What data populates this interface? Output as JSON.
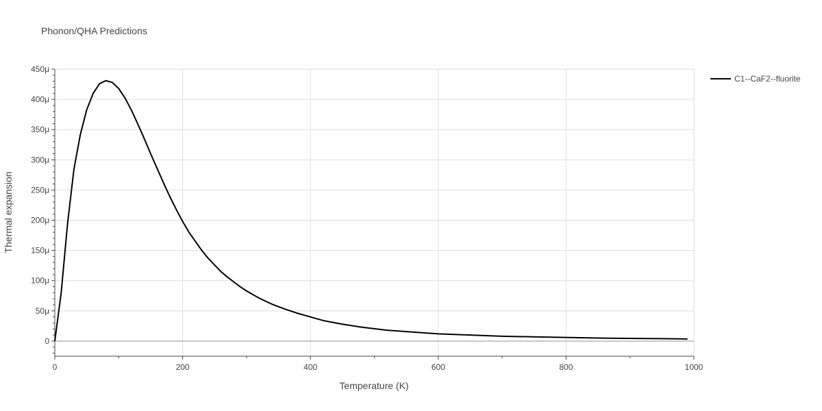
{
  "chart_data": {
    "type": "line",
    "title": "Phonon/QHA Predictions",
    "xlabel": "Temperature (K)",
    "ylabel": "Thermal expansion",
    "xlim": [
      0,
      1000
    ],
    "ylim": [
      -25,
      450
    ],
    "y_unit_suffix": "μ",
    "x_ticks": [
      0,
      200,
      400,
      600,
      800,
      1000
    ],
    "y_ticks": [
      0,
      50,
      100,
      150,
      200,
      250,
      300,
      350,
      400,
      450
    ],
    "grid": true,
    "legend_position": "top-right",
    "series": [
      {
        "name": "C1--CaF2--fluorite",
        "color": "#000000",
        "x": [
          0,
          10,
          20,
          30,
          40,
          50,
          60,
          70,
          80,
          90,
          100,
          110,
          120,
          130,
          140,
          150,
          160,
          170,
          180,
          190,
          200,
          210,
          220,
          230,
          240,
          250,
          260,
          270,
          280,
          290,
          300,
          320,
          340,
          360,
          380,
          400,
          420,
          450,
          480,
          520,
          560,
          600,
          650,
          700,
          750,
          800,
          850,
          900,
          950,
          990
        ],
        "y": [
          0,
          80,
          195,
          285,
          342,
          383,
          410,
          426,
          431,
          428,
          418,
          402,
          382,
          359,
          335,
          310,
          286,
          262,
          239,
          218,
          198,
          180,
          165,
          150,
          137,
          126,
          115,
          106,
          98,
          90,
          83,
          71,
          61,
          53,
          46,
          40,
          34,
          28,
          23,
          18,
          15,
          12,
          10,
          8,
          7,
          6,
          5,
          4.5,
          4,
          3.5
        ]
      }
    ]
  }
}
